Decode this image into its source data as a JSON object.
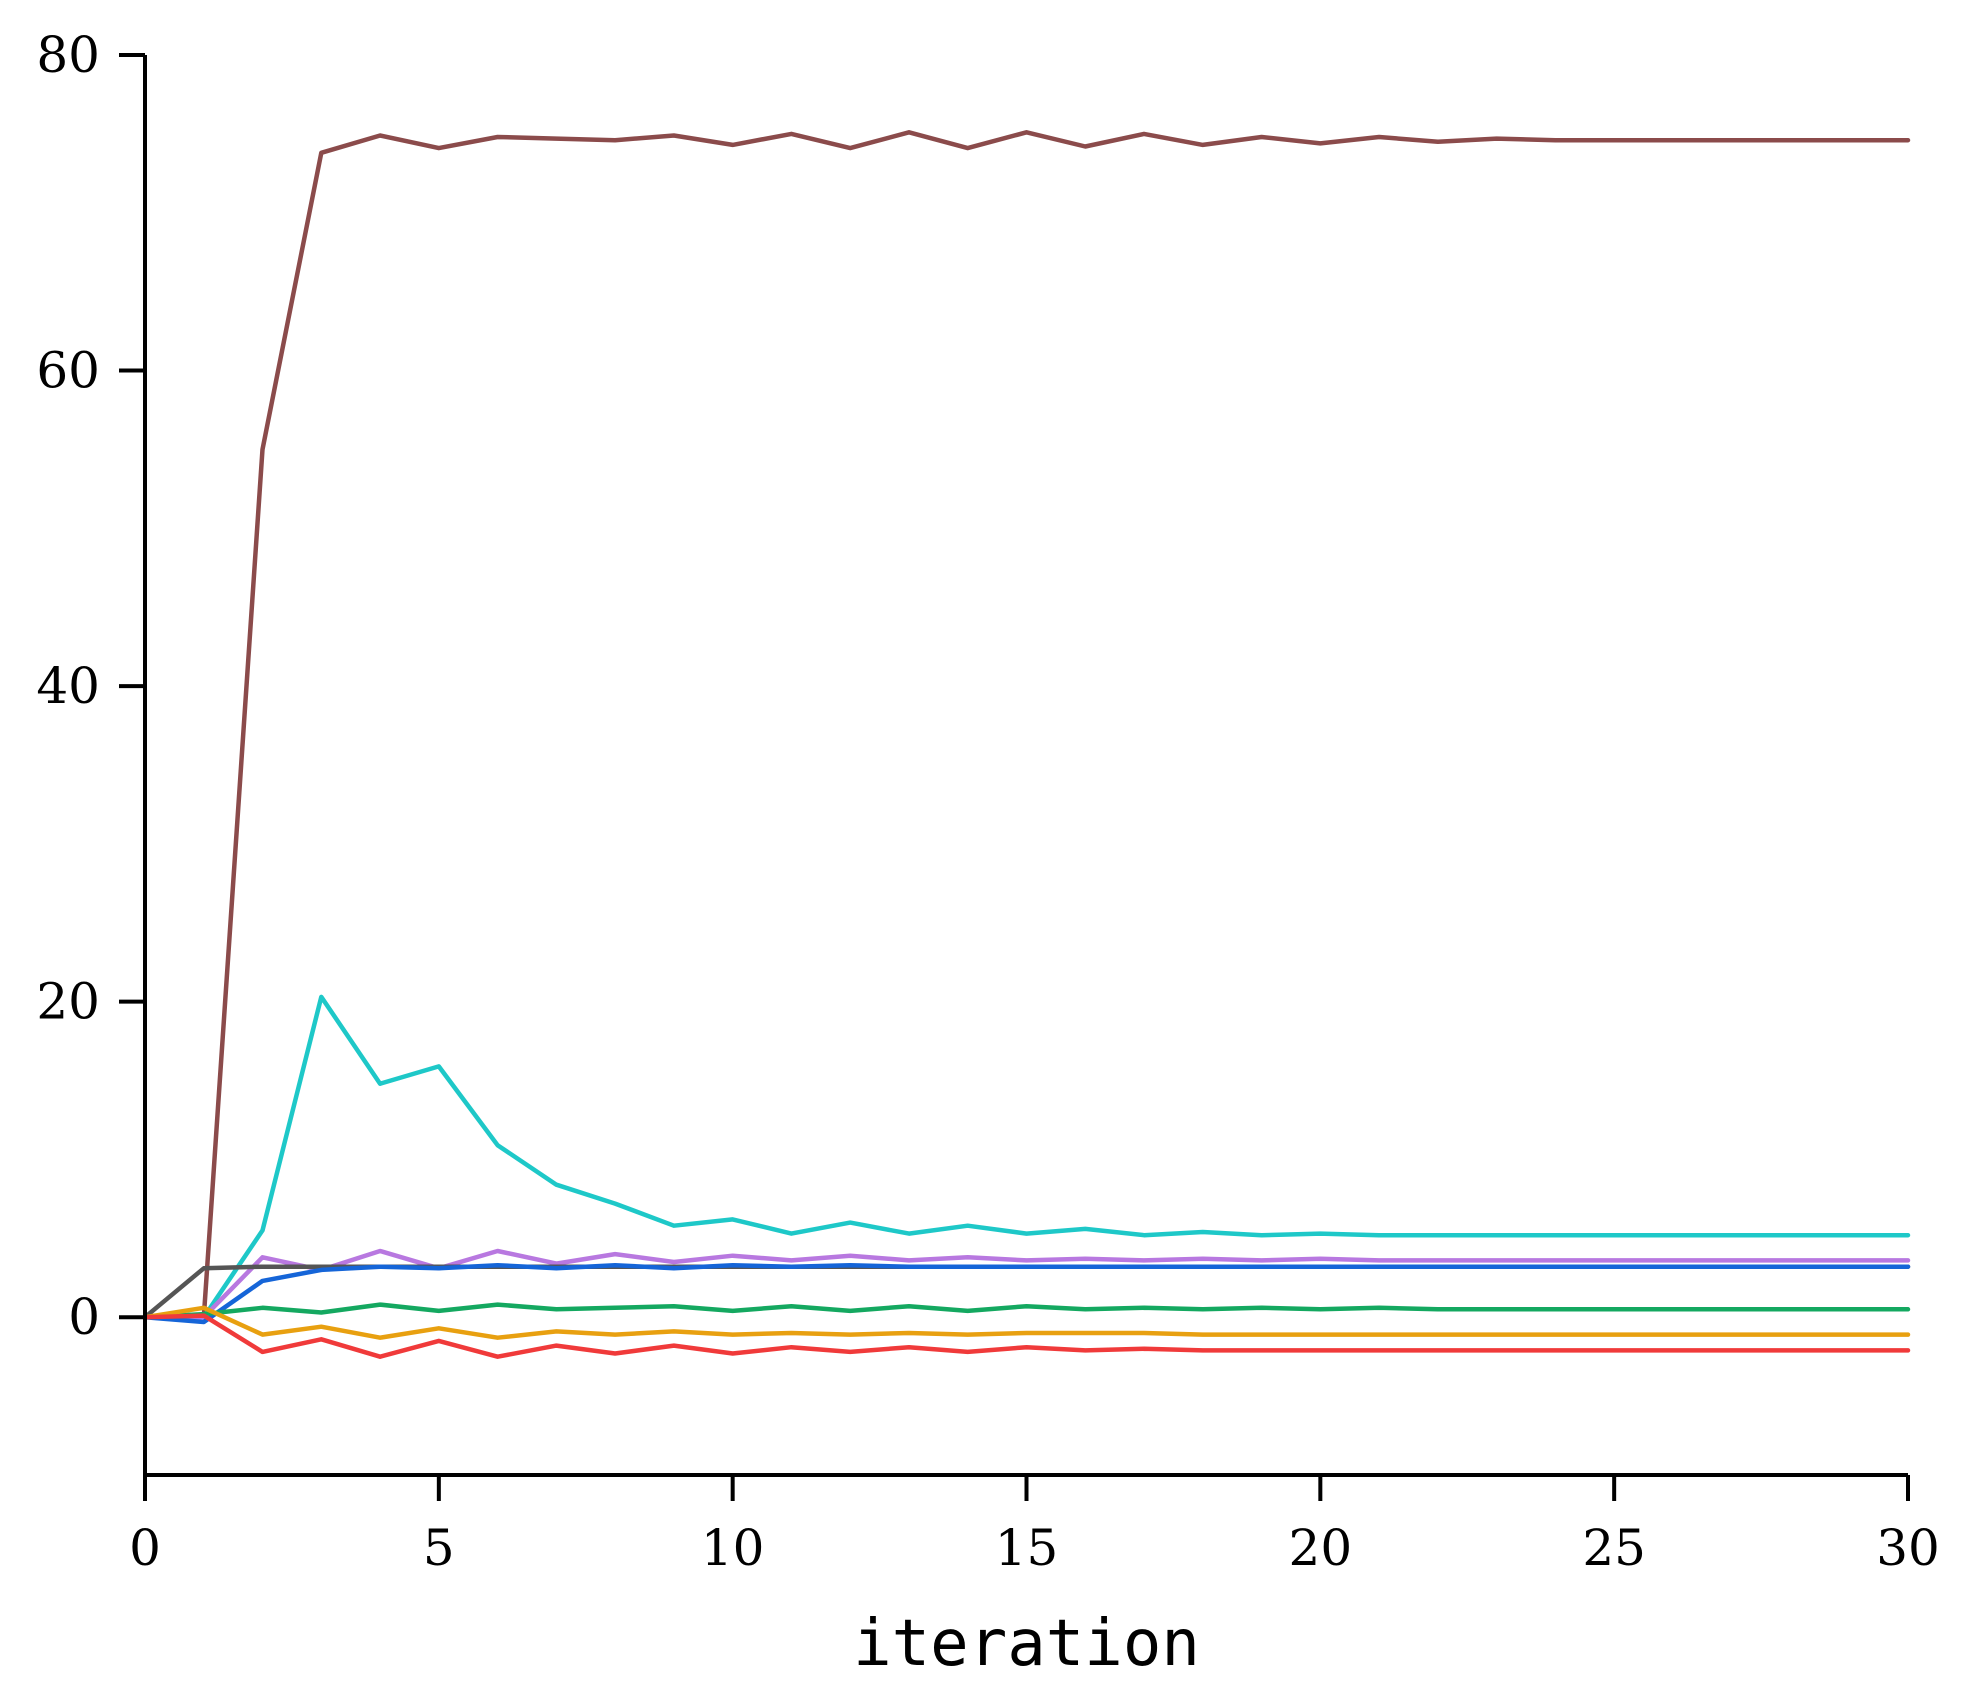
{
  "chart_data": {
    "type": "line",
    "title": "",
    "xlabel": "iteration",
    "ylabel": "",
    "xlim": [
      0,
      30
    ],
    "ylim": [
      -10,
      80
    ],
    "xticks": [
      0,
      5,
      10,
      15,
      20,
      25,
      30
    ],
    "yticks": [
      0,
      20,
      40,
      60,
      80
    ],
    "grid": false,
    "x": [
      0,
      1,
      2,
      3,
      4,
      5,
      6,
      7,
      8,
      9,
      10,
      11,
      12,
      13,
      14,
      15,
      16,
      17,
      18,
      19,
      20,
      21,
      22,
      23,
      24,
      25,
      26,
      27,
      28,
      29,
      30
    ],
    "series": [
      {
        "color": "#8B4B4B",
        "values": [
          0,
          0,
          55,
          73.8,
          74.9,
          74.1,
          74.8,
          74.7,
          74.6,
          74.9,
          74.3,
          75,
          74.1,
          75.1,
          74.1,
          75.1,
          74.2,
          75,
          74.3,
          74.8,
          74.4,
          74.8,
          74.5,
          74.7,
          74.6,
          74.6,
          74.6,
          74.6,
          74.6,
          74.6,
          74.6
        ]
      },
      {
        "color": "#1EC8C8",
        "values": [
          0,
          0,
          5.5,
          20.3,
          14.8,
          15.9,
          10.9,
          8.4,
          7.2,
          5.8,
          6.2,
          5.3,
          6.0,
          5.3,
          5.8,
          5.3,
          5.6,
          5.2,
          5.4,
          5.2,
          5.3,
          5.2,
          5.2,
          5.2,
          5.2,
          5.2,
          5.2,
          5.2,
          5.2,
          5.2,
          5.2
        ]
      },
      {
        "color": "#B878E0",
        "values": [
          0,
          0,
          3.8,
          3.0,
          4.2,
          3.1,
          4.2,
          3.4,
          4.0,
          3.5,
          3.9,
          3.6,
          3.9,
          3.6,
          3.8,
          3.6,
          3.7,
          3.6,
          3.7,
          3.6,
          3.7,
          3.6,
          3.6,
          3.6,
          3.6,
          3.6,
          3.6,
          3.6,
          3.6,
          3.6,
          3.6
        ]
      },
      {
        "color": "#555555",
        "values": [
          0,
          3.1,
          3.2,
          3.2,
          3.2,
          3.2,
          3.2,
          3.2,
          3.2,
          3.2,
          3.2,
          3.2,
          3.2,
          3.2,
          3.2,
          3.2,
          3.2,
          3.2,
          3.2,
          3.2,
          3.2,
          3.2,
          3.2,
          3.2,
          3.2,
          3.2,
          3.2,
          3.2,
          3.2,
          3.2,
          3.2
        ]
      },
      {
        "color": "#1565D8",
        "values": [
          0,
          -0.3,
          2.3,
          3.0,
          3.2,
          3.1,
          3.3,
          3.1,
          3.3,
          3.1,
          3.3,
          3.2,
          3.3,
          3.2,
          3.2,
          3.2,
          3.2,
          3.2,
          3.2,
          3.2,
          3.2,
          3.2,
          3.2,
          3.2,
          3.2,
          3.2,
          3.2,
          3.2,
          3.2,
          3.2,
          3.2
        ]
      },
      {
        "color": "#14A860",
        "values": [
          0,
          0.2,
          0.6,
          0.3,
          0.8,
          0.4,
          0.8,
          0.5,
          0.6,
          0.7,
          0.4,
          0.7,
          0.4,
          0.7,
          0.4,
          0.7,
          0.5,
          0.6,
          0.5,
          0.6,
          0.5,
          0.6,
          0.5,
          0.5,
          0.5,
          0.5,
          0.5,
          0.5,
          0.5,
          0.5,
          0.5
        ]
      },
      {
        "color": "#E8A010",
        "values": [
          0,
          0.6,
          -1.1,
          -0.6,
          -1.3,
          -0.7,
          -1.3,
          -0.9,
          -1.1,
          -0.9,
          -1.1,
          -1.0,
          -1.1,
          -1.0,
          -1.1,
          -1.0,
          -1.0,
          -1.0,
          -1.1,
          -1.1,
          -1.1,
          -1.1,
          -1.1,
          -1.1,
          -1.1,
          -1.1,
          -1.1,
          -1.1,
          -1.1,
          -1.1,
          -1.1
        ]
      },
      {
        "color": "#F03A3A",
        "values": [
          0,
          0.1,
          -2.2,
          -1.4,
          -2.5,
          -1.5,
          -2.5,
          -1.8,
          -2.3,
          -1.8,
          -2.3,
          -1.9,
          -2.2,
          -1.9,
          -2.2,
          -1.9,
          -2.1,
          -2.0,
          -2.1,
          -2.1,
          -2.1,
          -2.1,
          -2.1,
          -2.1,
          -2.1,
          -2.1,
          -2.1,
          -2.1,
          -2.1,
          -2.1,
          -2.1
        ]
      }
    ]
  }
}
